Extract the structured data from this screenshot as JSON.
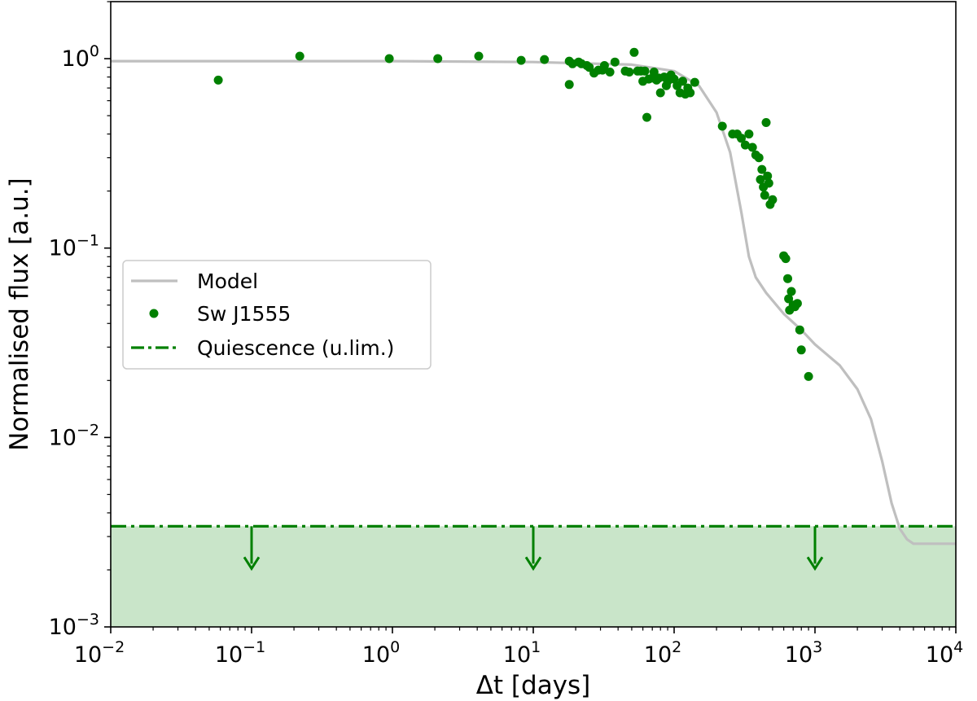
{
  "chart_data": {
    "type": "scatter",
    "title": "",
    "xlabel": "Δt [days]",
    "ylabel": "Normalised flux [a.u.]",
    "xscale": "log",
    "yscale": "log",
    "xlim": [
      0.01,
      10000
    ],
    "ylim": [
      0.001,
      2.0
    ],
    "grid": false,
    "x_ticks": [
      {
        "base": "10",
        "exp": "−2"
      },
      {
        "base": "10",
        "exp": "−1"
      },
      {
        "base": "10",
        "exp": "0"
      },
      {
        "base": "10",
        "exp": "1"
      },
      {
        "base": "10",
        "exp": "2"
      },
      {
        "base": "10",
        "exp": "3"
      },
      {
        "base": "10",
        "exp": "4"
      }
    ],
    "y_ticks": [
      {
        "base": "10",
        "exp": "−3"
      },
      {
        "base": "10",
        "exp": "−2"
      },
      {
        "base": "10",
        "exp": "−1"
      },
      {
        "base": "10",
        "exp": "0"
      }
    ],
    "legend": {
      "position": "center-left",
      "entries": [
        "Model",
        "Sw J1555",
        "Quiescence (u.lim.)"
      ]
    },
    "series": [
      {
        "name": "Model",
        "kind": "line",
        "color": "#bfbfbf",
        "x": [
          0.01,
          1,
          10,
          50,
          100,
          150,
          200,
          250,
          300,
          340,
          380,
          450,
          600,
          800,
          1000,
          1500,
          2000,
          2500,
          3000,
          3500,
          4000,
          4500,
          5000,
          7000,
          10000
        ],
        "y": [
          0.97,
          0.97,
          0.96,
          0.93,
          0.86,
          0.72,
          0.52,
          0.32,
          0.155,
          0.09,
          0.07,
          0.058,
          0.045,
          0.037,
          0.031,
          0.024,
          0.018,
          0.0125,
          0.0075,
          0.0045,
          0.0033,
          0.0029,
          0.00275,
          0.00275,
          0.00275
        ]
      },
      {
        "name": "Sw J1555",
        "kind": "scatter",
        "color": "#008000",
        "x": [
          0.058,
          0.22,
          0.95,
          2.1,
          4.1,
          8.2,
          12,
          18,
          18,
          19,
          21,
          22,
          24,
          25,
          27,
          29,
          31,
          32,
          35,
          38,
          45,
          48,
          52,
          55,
          58,
          60,
          62,
          64,
          66,
          70,
          72,
          75,
          78,
          80,
          85,
          88,
          90,
          95,
          100,
          105,
          110,
          115,
          120,
          125,
          130,
          140,
          220,
          260,
          280,
          300,
          320,
          340,
          360,
          380,
          400,
          410,
          420,
          430,
          440,
          450,
          460,
          470,
          480,
          500,
          600,
          620,
          640,
          650,
          660,
          680,
          700,
          720,
          750,
          780,
          800,
          900
        ],
        "y": [
          0.77,
          1.03,
          1.0,
          1.0,
          1.03,
          0.98,
          0.99,
          0.97,
          0.73,
          0.94,
          0.96,
          0.94,
          0.92,
          0.9,
          0.84,
          0.87,
          0.87,
          0.92,
          0.85,
          0.96,
          0.86,
          0.85,
          1.08,
          0.86,
          0.86,
          0.76,
          0.86,
          0.49,
          0.78,
          0.79,
          0.85,
          0.77,
          0.79,
          0.66,
          0.8,
          0.72,
          0.76,
          0.82,
          0.78,
          0.72,
          0.66,
          0.76,
          0.65,
          0.7,
          0.66,
          0.75,
          0.44,
          0.4,
          0.4,
          0.38,
          0.35,
          0.4,
          0.34,
          0.31,
          0.3,
          0.23,
          0.26,
          0.21,
          0.19,
          0.46,
          0.24,
          0.22,
          0.17,
          0.18,
          0.091,
          0.088,
          0.069,
          0.054,
          0.047,
          0.059,
          0.05,
          0.049,
          0.051,
          0.037,
          0.029,
          0.021
        ]
      },
      {
        "name": "Quiescence (u.lim.)",
        "kind": "upper-limit",
        "color": "#008000",
        "y": 0.0034,
        "arrows_x": [
          0.1,
          10,
          1000
        ],
        "fill_color": "#c9e5c9"
      }
    ]
  }
}
